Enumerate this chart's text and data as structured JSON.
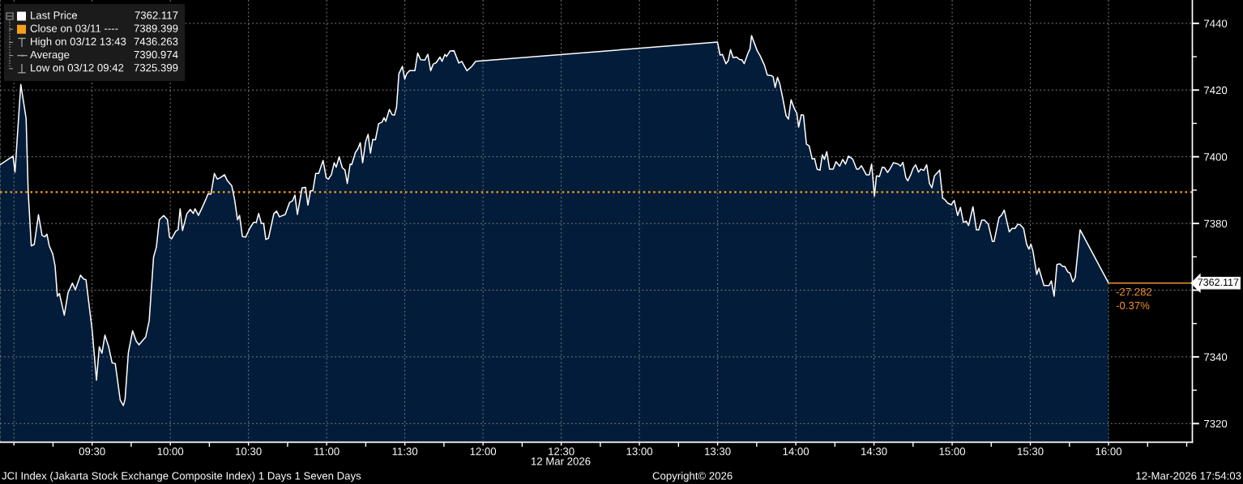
{
  "chart_data": {
    "type": "area",
    "title": "JCI Index (Jakarta Stock Exchange Composite Index) 1 Days 1 Seven Days",
    "xlabel": "12 Mar 2026",
    "x": [
      8.911,
      8.994,
      9.007,
      9.044,
      9.078,
      9.091,
      9.111,
      9.13,
      9.157,
      9.18,
      9.198,
      9.211,
      9.226,
      9.248,
      9.263,
      9.278,
      9.291,
      9.322,
      9.346,
      9.374,
      9.393,
      9.426,
      9.444,
      9.461,
      9.5,
      9.528,
      9.546,
      9.563,
      9.582,
      9.606,
      9.628,
      9.648,
      9.68,
      9.7,
      9.711,
      9.732,
      9.759,
      9.782,
      9.8,
      9.843,
      9.865,
      9.893,
      9.911,
      9.93,
      9.958,
      9.982,
      9.995,
      10.008,
      10.035,
      10.05,
      10.063,
      10.078,
      10.106,
      10.128,
      10.147,
      10.158,
      10.18,
      10.204,
      10.227,
      10.241,
      10.26,
      10.282,
      10.3,
      10.319,
      10.347,
      10.365,
      10.393,
      10.411,
      10.43,
      10.443,
      10.461,
      10.482,
      10.508,
      10.532,
      10.55,
      10.565,
      10.582,
      10.597,
      10.611,
      10.628,
      10.662,
      10.68,
      10.698,
      10.735,
      10.763,
      10.782,
      10.797,
      10.813,
      10.843,
      10.865,
      10.88,
      10.897,
      10.912,
      10.93,
      10.949,
      10.977,
      10.997,
      11.011,
      11.03,
      11.048,
      11.061,
      11.08,
      11.1,
      11.117,
      11.132,
      11.15,
      11.16,
      11.184,
      11.2,
      11.215,
      11.23,
      11.249,
      11.265,
      11.28,
      11.295,
      11.312,
      11.332,
      11.354,
      11.367,
      11.378,
      11.401,
      11.419,
      11.434,
      11.447,
      11.462,
      11.484,
      11.499,
      11.512,
      11.53,
      11.564,
      11.582,
      11.601,
      11.628,
      11.647,
      11.665,
      11.682,
      11.7,
      11.725,
      11.738,
      11.756,
      11.767,
      11.79,
      11.814,
      11.845,
      11.864,
      11.897,
      11.928,
      11.953,
      13.499,
      13.516,
      13.531,
      13.553,
      13.568,
      13.583,
      13.599,
      13.62,
      13.642,
      13.655,
      13.67,
      13.694,
      13.707,
      13.717,
      13.753,
      13.772,
      13.799,
      13.818,
      13.846,
      13.855,
      13.868,
      13.883,
      13.898,
      13.916,
      13.938,
      13.953,
      13.97,
      13.99,
      14.007,
      14.018,
      14.035,
      14.049,
      14.068,
      14.086,
      14.105,
      14.12,
      14.136,
      14.155,
      14.17,
      14.183,
      14.198,
      14.216,
      14.239,
      14.257,
      14.281,
      14.3,
      14.318,
      14.337,
      14.364,
      14.389,
      14.401,
      14.42,
      14.451,
      14.47,
      14.485,
      14.503,
      14.516,
      14.535,
      14.553,
      14.568,
      14.587,
      14.602,
      14.624,
      14.655,
      14.67,
      14.685,
      14.704,
      14.716,
      14.735,
      14.75,
      14.766,
      14.785,
      14.8,
      14.818,
      14.837,
      14.855,
      14.87,
      14.887,
      14.92,
      14.939,
      14.952,
      14.972,
      14.994,
      15.013,
      15.035,
      15.053,
      15.072,
      15.09,
      15.105,
      15.133,
      15.155,
      15.17,
      15.189,
      15.207,
      15.231,
      15.257,
      15.268,
      15.3,
      15.315,
      15.333,
      15.365,
      15.383,
      15.402,
      15.42,
      15.435,
      15.457,
      15.476,
      15.491,
      15.504,
      15.517,
      15.541,
      15.554,
      15.587,
      15.62,
      15.634,
      15.652,
      15.67,
      15.689,
      15.707,
      15.72,
      15.739,
      15.754,
      15.772,
      15.787,
      15.818,
      16.0
    ],
    "series": [
      {
        "name": "Last Price",
        "color": "#ffffff",
        "values": [
          7397.6,
          7400.2,
          7395.4,
          7421.7,
          7411.5,
          7389.8,
          7373.3,
          7373.7,
          7382.6,
          7376.4,
          7376.0,
          7376.8,
          7373.3,
          7370.9,
          7367.3,
          7358.2,
          7359.0,
          7352.5,
          7359.2,
          7362.1,
          7360.1,
          7364.5,
          7363.4,
          7363.1,
          7348.2,
          7333.0,
          7343.0,
          7341.1,
          7346.5,
          7343.0,
          7338.2,
          7338.0,
          7327.0,
          7325.4,
          7327.4,
          7341.3,
          7347.8,
          7344.7,
          7343.6,
          7346.0,
          7350.8,
          7369.9,
          7372.9,
          7381.1,
          7382.4,
          7381.1,
          7375.9,
          7375.4,
          7377.7,
          7378.1,
          7384.4,
          7377.9,
          7382.9,
          7384.2,
          7383.0,
          7384.4,
          7382.4,
          7384.8,
          7387.2,
          7388.8,
          7388.8,
          7395.0,
          7393.3,
          7393.7,
          7394.6,
          7392.8,
          7391.3,
          7387.2,
          7381.1,
          7382.4,
          7376.1,
          7375.9,
          7378.5,
          7380.3,
          7380.3,
          7383.0,
          7380.0,
          7380.0,
          7375.2,
          7375.6,
          7382.9,
          7383.7,
          7382.0,
          7382.7,
          7386.3,
          7386.8,
          7388.5,
          7382.7,
          7390.7,
          7390.8,
          7385.5,
          7389.8,
          7389.8,
          7395.0,
          7395.0,
          7398.9,
          7393.7,
          7393.3,
          7394.6,
          7398.2,
          7396.9,
          7400.0,
          7396.7,
          7396.0,
          7392.0,
          7397.8,
          7397.6,
          7401.3,
          7402.4,
          7404.2,
          7398.2,
          7404.5,
          7406.7,
          7401.1,
          7405.2,
          7405.1,
          7409.9,
          7410.4,
          7411.7,
          7410.6,
          7414.2,
          7412.6,
          7412.5,
          7414.9,
          7424.9,
          7427.1,
          7423.3,
          7424.9,
          7425.8,
          7425.8,
          7431.1,
          7429.1,
          7429.0,
          7430.7,
          7425.8,
          7427.8,
          7428.2,
          7429.9,
          7428.6,
          7430.7,
          7430.1,
          7431.7,
          7431.8,
          7428.1,
          7428.6,
          7425.8,
          7427.1,
          7428.6,
          7434.4,
          7430.5,
          7430.7,
          7427.9,
          7428.8,
          7432.1,
          7429.7,
          7429.9,
          7429.1,
          7429.1,
          7427.9,
          7431.0,
          7432.3,
          7436.3,
          7431.8,
          7430.3,
          7427.5,
          7424.5,
          7424.3,
          7424.0,
          7420.8,
          7423.8,
          7421.8,
          7417.7,
          7412.3,
          7411.3,
          7417.1,
          7414.5,
          7413.0,
          7408.9,
          7412.6,
          7412.5,
          7403.8,
          7403.2,
          7399.3,
          7399.5,
          7396.3,
          7396.0,
          7400.6,
          7399.2,
          7401.5,
          7396.3,
          7396.3,
          7398.5,
          7397.2,
          7399.2,
          7397.8,
          7400.2,
          7399.3,
          7396.3,
          7396.3,
          7397.3,
          7394.6,
          7394.6,
          7397.8,
          7388.2,
          7394.3,
          7394.1,
          7396.9,
          7396.7,
          7395.3,
          7396.3,
          7398.2,
          7397.8,
          7397.2,
          7398.3,
          7393.7,
          7392.8,
          7394.6,
          7396.5,
          7397.6,
          7395.4,
          7396.3,
          7395.9,
          7397.6,
          7392.0,
          7390.7,
          7394.3,
          7396.0,
          7387.6,
          7387.2,
          7386.1,
          7385.6,
          7386.9,
          7382.4,
          7384.8,
          7380.3,
          7380.7,
          7379.4,
          7385.0,
          7378.1,
          7378.1,
          7381.0,
          7381.0,
          7379.8,
          7374.6,
          7374.6,
          7381.8,
          7382.4,
          7384.0,
          7377.5,
          7378.5,
          7378.5,
          7379.8,
          7379.6,
          7378.5,
          7373.8,
          7372.3,
          7373.8,
          7371.6,
          7364.7,
          7366.6,
          7361.4,
          7361.4,
          7362.8,
          7358.2,
          7367.7,
          7367.9,
          7367.1,
          7367.1,
          7365.5,
          7365.1,
          7362.5,
          7363.8,
          7378.1,
          7362.117
        ]
      }
    ],
    "xlim": [
      8.911,
      16.536
    ],
    "xticks": [
      {
        "value": 9,
        "label": null
      },
      {
        "value": 9.5,
        "label": "09:30"
      },
      {
        "value": 10,
        "label": "10:00"
      },
      {
        "value": 10.5,
        "label": "10:30"
      },
      {
        "value": 11,
        "label": "11:00"
      },
      {
        "value": 11.5,
        "label": "11:30"
      },
      {
        "value": 12,
        "label": "12:00"
      },
      {
        "value": 12.5,
        "label": "12:30"
      },
      {
        "value": 13,
        "label": "13:00"
      },
      {
        "value": 13.5,
        "label": "13:30"
      },
      {
        "value": 14,
        "label": "14:00"
      },
      {
        "value": 14.5,
        "label": "14:30"
      },
      {
        "value": 15,
        "label": "15:00"
      },
      {
        "value": 15.5,
        "label": "15:30"
      },
      {
        "value": 16,
        "label": "16:00"
      }
    ],
    "ylim": [
      7314.4,
      7447.0
    ],
    "yticks": [
      7320,
      7340,
      {
        "value": 7360,
        "label": null
      },
      7380,
      7400,
      7420,
      7440
    ],
    "grid": true,
    "legend": "top left",
    "ref_lines": [
      {
        "axis": "y",
        "value": 7389.399,
        "label": "Close on 03/11 ---- 7389.399",
        "color": "#f7a11c",
        "line_style": "dotted"
      }
    ],
    "annotations": [
      "High on 03/12 13:43 7436.263",
      "Average 7390.974",
      "Low on 03/12 09:42 7325.399",
      "7362.117",
      {
        "text": "-27.282",
        "x": 16.0,
        "y": 7362.117
      },
      {
        "text": "-0.37%",
        "x": 16.0,
        "y": 7362.117
      },
      "Copyright© 2026",
      "12-Mar-2026 17:54:03"
    ]
  }
}
